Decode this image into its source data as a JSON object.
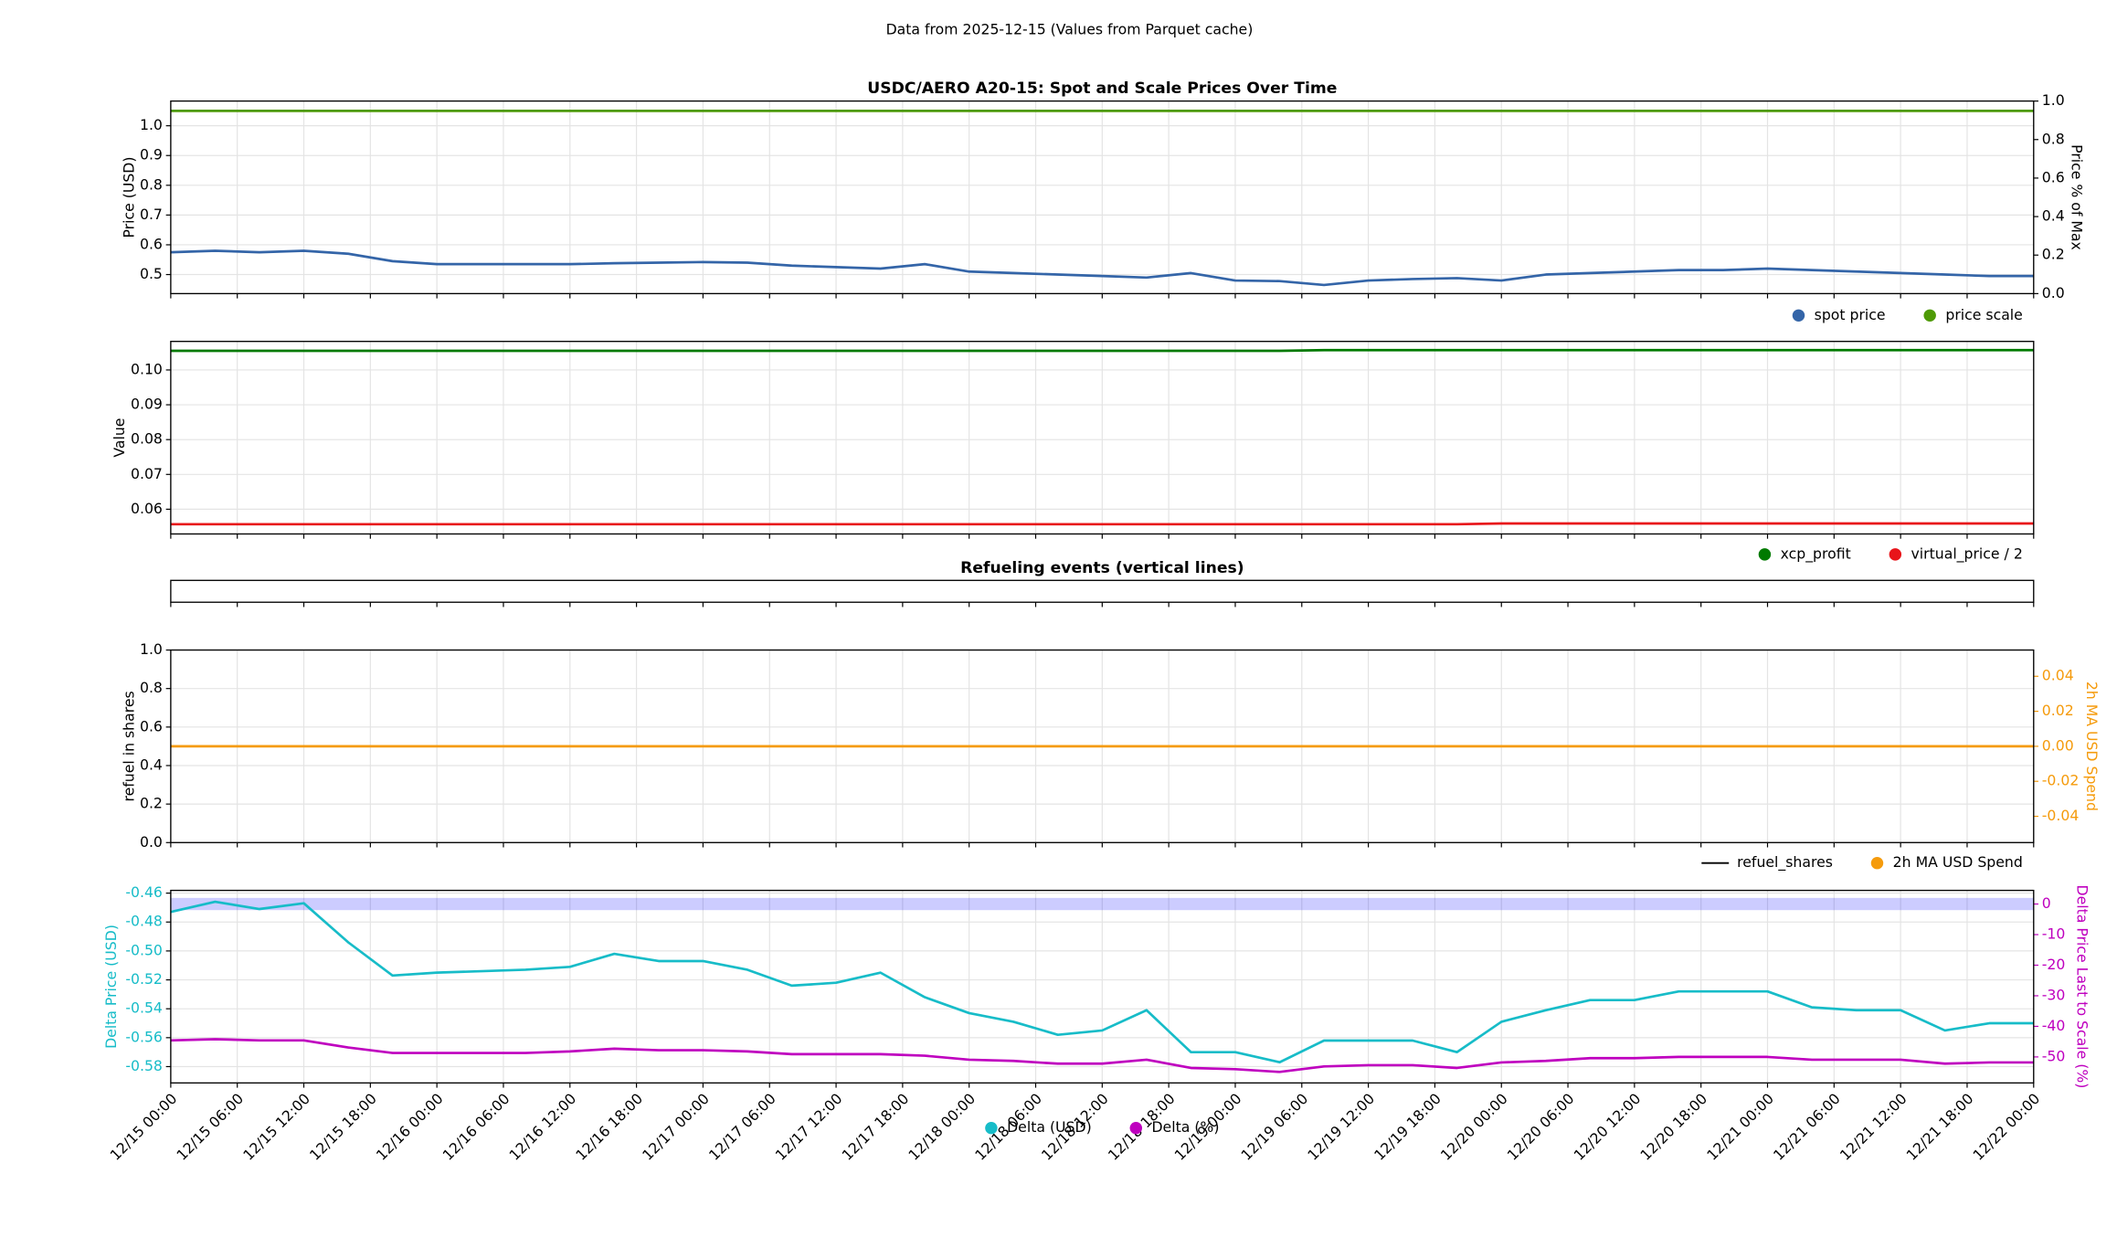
{
  "title": "Data from 2025-12-15 (Values from Parquet cache)",
  "chart_data": [
    {
      "type": "line",
      "title": "USDC/AERO A20-15: Spot and Scale Prices Over Time",
      "ylabel": "Price (USD)",
      "y2label": "Price % of Max",
      "grid": true,
      "legend": "lower right",
      "xlim": [
        "12/15 00:00",
        "12/22 00:00"
      ],
      "x": [
        "12/15 00:00",
        "12/15 04:00",
        "12/15 08:00",
        "12/15 12:00",
        "12/15 16:00",
        "12/15 20:00",
        "12/16 00:00",
        "12/16 04:00",
        "12/16 08:00",
        "12/16 12:00",
        "12/16 16:00",
        "12/16 20:00",
        "12/17 00:00",
        "12/17 04:00",
        "12/17 08:00",
        "12/17 12:00",
        "12/17 16:00",
        "12/17 20:00",
        "12/18 00:00",
        "12/18 04:00",
        "12/18 08:00",
        "12/18 12:00",
        "12/18 16:00",
        "12/18 20:00",
        "12/19 00:00",
        "12/19 04:00",
        "12/19 08:00",
        "12/19 12:00",
        "12/19 16:00",
        "12/19 20:00",
        "12/20 00:00",
        "12/20 04:00",
        "12/20 08:00",
        "12/20 12:00",
        "12/20 16:00",
        "12/20 20:00",
        "12/21 00:00",
        "12/21 04:00",
        "12/21 08:00",
        "12/21 12:00",
        "12/21 16:00",
        "12/21 20:00",
        "12/22 00:00"
      ],
      "ylim": [
        0.436,
        1.083
      ],
      "yticks": [
        0.5,
        0.6,
        0.7,
        0.8,
        0.9,
        {
          "value": 1,
          "label": "1.0"
        }
      ],
      "y2lim": [
        0,
        1
      ],
      "y2ticks": [
        {
          "value": 0,
          "label": "0.0"
        },
        0.2,
        0.4,
        0.6,
        0.8,
        {
          "value": 1,
          "label": "1.0"
        }
      ],
      "series": [
        {
          "name": "spot price",
          "color": "#3465a8",
          "values": [
            0.575,
            0.58,
            0.575,
            0.58,
            0.57,
            0.545,
            0.535,
            0.535,
            0.535,
            0.535,
            0.538,
            0.54,
            0.542,
            0.54,
            0.53,
            0.525,
            0.52,
            0.535,
            0.51,
            0.505,
            0.5,
            0.495,
            0.49,
            0.505,
            0.48,
            0.478,
            0.465,
            0.48,
            0.485,
            0.488,
            0.48,
            0.5,
            0.505,
            0.51,
            0.515,
            0.515,
            0.52,
            0.515,
            0.51,
            0.505,
            0.5,
            0.495,
            0.495
          ]
        },
        {
          "name": "price scale",
          "color": "#4e9a06",
          "values": [
            1.05,
            1.05,
            1.05,
            1.05,
            1.05,
            1.05,
            1.05,
            1.05,
            1.05,
            1.05,
            1.05,
            1.05,
            1.05,
            1.05,
            1.05,
            1.05,
            1.05,
            1.05,
            1.05,
            1.05,
            1.05,
            1.05,
            1.05,
            1.05,
            1.05,
            1.05,
            1.05,
            1.05,
            1.05,
            1.05,
            1.05,
            1.05,
            1.05,
            1.05,
            1.05,
            1.05,
            1.05,
            1.05,
            1.05,
            1.05,
            1.05,
            1.05,
            1.05
          ]
        }
      ]
    },
    {
      "type": "line",
      "ylabel": "Value",
      "grid": true,
      "legend": "lower right",
      "xlim": [
        "12/15 00:00",
        "12/22 00:00"
      ],
      "x": [
        "12/15 00:00",
        "12/15 04:00",
        "12/15 08:00",
        "12/15 12:00",
        "12/15 16:00",
        "12/15 20:00",
        "12/16 00:00",
        "12/16 04:00",
        "12/16 08:00",
        "12/16 12:00",
        "12/16 16:00",
        "12/16 20:00",
        "12/17 00:00",
        "12/17 04:00",
        "12/17 08:00",
        "12/17 12:00",
        "12/17 16:00",
        "12/17 20:00",
        "12/18 00:00",
        "12/18 04:00",
        "12/18 08:00",
        "12/18 12:00",
        "12/18 16:00",
        "12/18 20:00",
        "12/19 00:00",
        "12/19 04:00",
        "12/19 08:00",
        "12/19 12:00",
        "12/19 16:00",
        "12/19 20:00",
        "12/20 00:00",
        "12/20 04:00",
        "12/20 08:00",
        "12/20 12:00",
        "12/20 16:00",
        "12/20 20:00",
        "12/21 00:00",
        "12/21 04:00",
        "12/21 08:00",
        "12/21 12:00",
        "12/21 16:00",
        "12/21 20:00",
        "12/22 00:00"
      ],
      "ylim": [
        0.0529,
        0.1082
      ],
      "yticks": [
        0.06,
        0.07,
        0.08,
        0.09,
        {
          "value": 0.1,
          "label": "0.10"
        }
      ],
      "series": [
        {
          "name": "xcp_profit",
          "color": "#007a00",
          "values": [
            0.1055,
            0.1055,
            0.1055,
            0.1055,
            0.1055,
            0.1055,
            0.1055,
            0.1055,
            0.1055,
            0.1055,
            0.1055,
            0.1055,
            0.1055,
            0.1055,
            0.1055,
            0.1055,
            0.1055,
            0.1055,
            0.1055,
            0.1055,
            0.1055,
            0.1055,
            0.1055,
            0.1055,
            0.1055,
            0.1055,
            0.1057,
            0.1057,
            0.1057,
            0.1057,
            0.1057,
            0.1057,
            0.1057,
            0.1057,
            0.1057,
            0.1057,
            0.1057,
            0.1057,
            0.1057,
            0.1057,
            0.1057,
            0.1057,
            0.1057
          ]
        },
        {
          "name": "virtual_price / 2",
          "color": "#e8141a",
          "values": [
            0.0557,
            0.0557,
            0.0557,
            0.0557,
            0.0557,
            0.0557,
            0.0557,
            0.0557,
            0.0557,
            0.0557,
            0.0557,
            0.0557,
            0.0557,
            0.0557,
            0.0557,
            0.0557,
            0.0557,
            0.0557,
            0.0557,
            0.0557,
            0.0557,
            0.0557,
            0.0557,
            0.0557,
            0.0557,
            0.0557,
            0.0557,
            0.0557,
            0.0557,
            0.0557,
            0.0559,
            0.0559,
            0.0559,
            0.0559,
            0.0559,
            0.0559,
            0.0559,
            0.0559,
            0.0559,
            0.0559,
            0.0559,
            0.0559,
            0.0559
          ]
        }
      ]
    },
    {
      "type": "events",
      "title": "Refueling events (vertical lines)",
      "xlim": [
        "12/15 00:00",
        "12/22 00:00"
      ]
    },
    {
      "type": "line",
      "ylabel": "refuel in shares",
      "y2label": "2h MA USD Spend",
      "grid": true,
      "legend": "lower right",
      "axis_colors": true,
      "xlim": [
        "12/15 00:00",
        "12/22 00:00"
      ],
      "x": [
        "12/15 00:00",
        "12/15 04:00",
        "12/15 08:00",
        "12/15 12:00",
        "12/15 16:00",
        "12/15 20:00",
        "12/16 00:00",
        "12/16 04:00",
        "12/16 08:00",
        "12/16 12:00",
        "12/16 16:00",
        "12/16 20:00",
        "12/17 00:00",
        "12/17 04:00",
        "12/17 08:00",
        "12/17 12:00",
        "12/17 16:00",
        "12/17 20:00",
        "12/18 00:00",
        "12/18 04:00",
        "12/18 08:00",
        "12/18 12:00",
        "12/18 16:00",
        "12/18 20:00",
        "12/19 00:00",
        "12/19 04:00",
        "12/19 08:00",
        "12/19 12:00",
        "12/19 16:00",
        "12/19 20:00",
        "12/20 00:00",
        "12/20 04:00",
        "12/20 08:00",
        "12/20 12:00",
        "12/20 16:00",
        "12/20 20:00",
        "12/21 00:00",
        "12/21 04:00",
        "12/21 08:00",
        "12/21 12:00",
        "12/21 16:00",
        "12/21 20:00",
        "12/22 00:00"
      ],
      "ylim": [
        0,
        1
      ],
      "yticks": [
        {
          "value": 0,
          "label": "0.0"
        },
        0.2,
        0.4,
        0.6,
        0.8,
        {
          "value": 1,
          "label": "1.0"
        }
      ],
      "y2lim": [
        -0.055,
        0.055
      ],
      "y2ticks": [
        -0.04,
        -0.02,
        {
          "value": 0,
          "label": "0.00"
        },
        0.02,
        0.04
      ],
      "series": [
        {
          "name": "refuel_shares",
          "color": "#000000",
          "style": "line",
          "values": [
            null,
            null,
            null,
            null,
            null,
            null,
            null,
            null,
            null,
            null,
            null,
            null,
            null,
            null,
            null,
            null,
            null,
            null,
            null,
            null,
            null,
            null,
            null,
            null,
            null,
            null,
            null,
            null,
            null,
            null,
            null,
            null,
            null,
            null,
            null,
            null,
            null,
            null,
            null,
            null,
            null,
            null,
            null
          ]
        },
        {
          "name": "2h MA USD Spend",
          "color": "#f59b0c",
          "axis": "y2",
          "values": [
            0,
            0,
            0,
            0,
            0,
            0,
            0,
            0,
            0,
            0,
            0,
            0,
            0,
            0,
            0,
            0,
            0,
            0,
            0,
            0,
            0,
            0,
            0,
            0,
            0,
            0,
            0,
            0,
            0,
            0,
            0,
            0,
            0,
            0,
            0,
            0,
            0,
            0,
            0,
            0,
            0,
            0,
            0
          ]
        }
      ]
    },
    {
      "type": "line",
      "ylabel": "Delta Price (USD)",
      "y2label": "Delta Price Last to Scale (%)",
      "grid": true,
      "legend": "lower center",
      "axis_colors": true,
      "xlim": [
        "12/15 00:00",
        "12/22 00:00"
      ],
      "xticks": [
        "12/15 00:00",
        "12/15 06:00",
        "12/15 12:00",
        "12/15 18:00",
        "12/16 00:00",
        "12/16 06:00",
        "12/16 12:00",
        "12/16 18:00",
        "12/17 00:00",
        "12/17 06:00",
        "12/17 12:00",
        "12/17 18:00",
        "12/18 00:00",
        "12/18 06:00",
        "12/18 12:00",
        "12/18 18:00",
        "12/19 00:00",
        "12/19 06:00",
        "12/19 12:00",
        "12/19 18:00",
        "12/20 00:00",
        "12/20 06:00",
        "12/20 12:00",
        "12/20 18:00",
        "12/21 00:00",
        "12/21 06:00",
        "12/21 12:00",
        "12/21 18:00",
        "12/22 00:00"
      ],
      "x": [
        "12/15 00:00",
        "12/15 04:00",
        "12/15 08:00",
        "12/15 12:00",
        "12/15 16:00",
        "12/15 20:00",
        "12/16 00:00",
        "12/16 04:00",
        "12/16 08:00",
        "12/16 12:00",
        "12/16 16:00",
        "12/16 20:00",
        "12/17 00:00",
        "12/17 04:00",
        "12/17 08:00",
        "12/17 12:00",
        "12/17 16:00",
        "12/17 20:00",
        "12/18 00:00",
        "12/18 04:00",
        "12/18 08:00",
        "12/18 12:00",
        "12/18 16:00",
        "12/18 20:00",
        "12/19 00:00",
        "12/19 04:00",
        "12/19 08:00",
        "12/19 12:00",
        "12/19 16:00",
        "12/19 20:00",
        "12/20 00:00",
        "12/20 04:00",
        "12/20 08:00",
        "12/20 12:00",
        "12/20 16:00",
        "12/20 20:00",
        "12/21 00:00",
        "12/21 04:00",
        "12/21 08:00",
        "12/21 12:00",
        "12/21 16:00",
        "12/21 20:00",
        "12/22 00:00"
      ],
      "ylim": [
        -0.5913,
        -0.4581
      ],
      "yticks": [
        -0.58,
        -0.56,
        -0.54,
        -0.52,
        {
          "value": -0.5,
          "label": "-0.50"
        },
        -0.48,
        -0.46
      ],
      "y2lim": [
        -58.5,
        4.46
      ],
      "y2ticks": [
        -50,
        -40,
        -30,
        -20,
        -10,
        0
      ],
      "band": [
        -2,
        2
      ],
      "band_color": "#0000ff",
      "series": [
        {
          "name": "Delta (USD)",
          "color": "#17bcc8",
          "values": [
            -0.473,
            -0.466,
            -0.471,
            -0.467,
            -0.494,
            -0.517,
            -0.515,
            -0.514,
            -0.513,
            -0.511,
            -0.502,
            -0.507,
            -0.507,
            -0.513,
            -0.524,
            -0.522,
            -0.515,
            -0.532,
            -0.543,
            -0.549,
            -0.558,
            -0.555,
            -0.541,
            -0.57,
            -0.57,
            -0.577,
            -0.562,
            -0.562,
            -0.562,
            -0.57,
            -0.549,
            -0.541,
            -0.534,
            -0.534,
            -0.528,
            -0.528,
            -0.528,
            -0.539,
            -0.541,
            -0.541,
            -0.555,
            -0.55,
            -0.55
          ]
        },
        {
          "name": "Delta (%)",
          "color": "#bf00bf",
          "axis": "y2",
          "values": [
            -44.6,
            -44.2,
            -44.6,
            -44.6,
            -46.9,
            -48.7,
            -48.7,
            -48.7,
            -48.7,
            -48.2,
            -47.3,
            -47.8,
            -47.8,
            -48.2,
            -49.1,
            -49.1,
            -49.1,
            -49.6,
            -50.9,
            -51.3,
            -52.2,
            -52.2,
            -50.9,
            -53.6,
            -54,
            -54.9,
            -53.1,
            -52.7,
            -52.7,
            -53.6,
            -51.8,
            -51.3,
            -50.4,
            -50.4,
            -50,
            -50,
            -50,
            -50.9,
            -50.9,
            -50.9,
            -52.2,
            -51.8,
            -51.8
          ]
        }
      ]
    }
  ]
}
